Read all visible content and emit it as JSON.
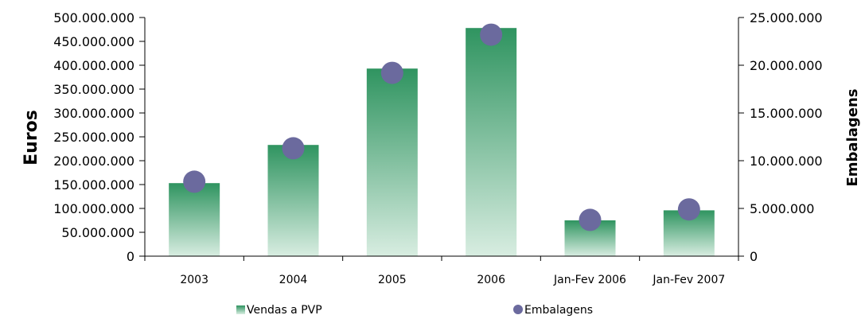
{
  "chart_data": {
    "type": "bar",
    "categories": [
      "2003",
      "2004",
      "2005",
      "2006",
      "Jan-Fev 2006",
      "Jan-Fev 2007"
    ],
    "series": [
      {
        "name": "Vendas a PVP",
        "type": "bar",
        "axis": "left",
        "color": "#3d9c68",
        "values": [
          153000000,
          233000000,
          393000000,
          478000000,
          75000000,
          96000000
        ]
      },
      {
        "name": "Embalagens",
        "type": "scatter",
        "axis": "right",
        "color": "#6b6a9e",
        "values": [
          7800000,
          11300000,
          19200000,
          23200000,
          3800000,
          4900000
        ]
      }
    ],
    "ylabel": "Euros",
    "y2label": "Embalagens",
    "ylim": [
      0,
      500000000
    ],
    "y2lim": [
      0,
      25000000
    ],
    "yticks": [
      "0",
      "50.000.000",
      "100.000.000",
      "150.000.000",
      "200.000.000",
      "250.000.000",
      "300.000.000",
      "350.000.000",
      "400.000.000",
      "450.000.000",
      "500.000.000"
    ],
    "y2ticks": [
      "0",
      "5.000.000",
      "10.000.000",
      "15.000.000",
      "20.000.000",
      "25.000.000"
    ],
    "grid": false,
    "legend": "bottom"
  }
}
